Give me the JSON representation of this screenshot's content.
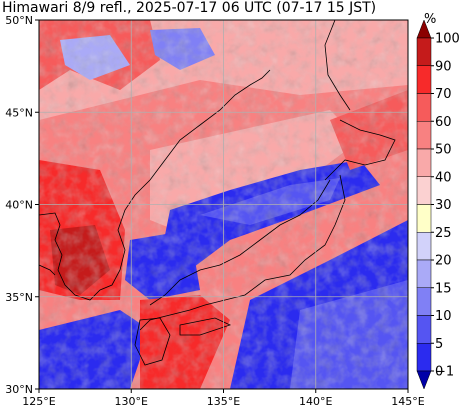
{
  "title": "Himawari 8/9 refl., 2025-07-17 06 UTC (07-17 15 JST)",
  "map": {
    "lon_range": [
      125,
      145
    ],
    "lat_range": [
      30,
      50
    ],
    "lon_ticks": [
      {
        "value": 125,
        "label": "125°E"
      },
      {
        "value": 130,
        "label": "130°E"
      },
      {
        "value": 135,
        "label": "135°E"
      },
      {
        "value": 140,
        "label": "140°E"
      },
      {
        "value": 145,
        "label": "145°E"
      }
    ],
    "lat_ticks": [
      {
        "value": 30,
        "label": "30°N"
      },
      {
        "value": 35,
        "label": "35°N"
      },
      {
        "value": 40,
        "label": "40°N"
      },
      {
        "value": 45,
        "label": "45°N"
      },
      {
        "value": 50,
        "label": "50°N"
      }
    ],
    "grid": true
  },
  "colorbar": {
    "unit": "%",
    "levels": [
      {
        "label": "100",
        "color": "#8b0000"
      },
      {
        "label": "90",
        "color": "#c51b1b"
      },
      {
        "label": "70",
        "color": "#f72a2a"
      },
      {
        "label": "60",
        "color": "#f65b5b"
      },
      {
        "label": "50",
        "color": "#f88181"
      },
      {
        "label": "40",
        "color": "#f9a9a9"
      },
      {
        "label": "30",
        "color": "#fbd1d1"
      },
      {
        "label": "25",
        "color": "#ffffc8"
      },
      {
        "label": "20",
        "color": "#d2d2fa"
      },
      {
        "label": "15",
        "color": "#aaaaf7"
      },
      {
        "label": "10",
        "color": "#8080f5"
      },
      {
        "label": "5",
        "color": "#5555f2"
      },
      {
        "label": "0",
        "color": "#2b2bef"
      },
      {
        "label": "−1",
        "color": "#0000a8"
      }
    ]
  }
}
